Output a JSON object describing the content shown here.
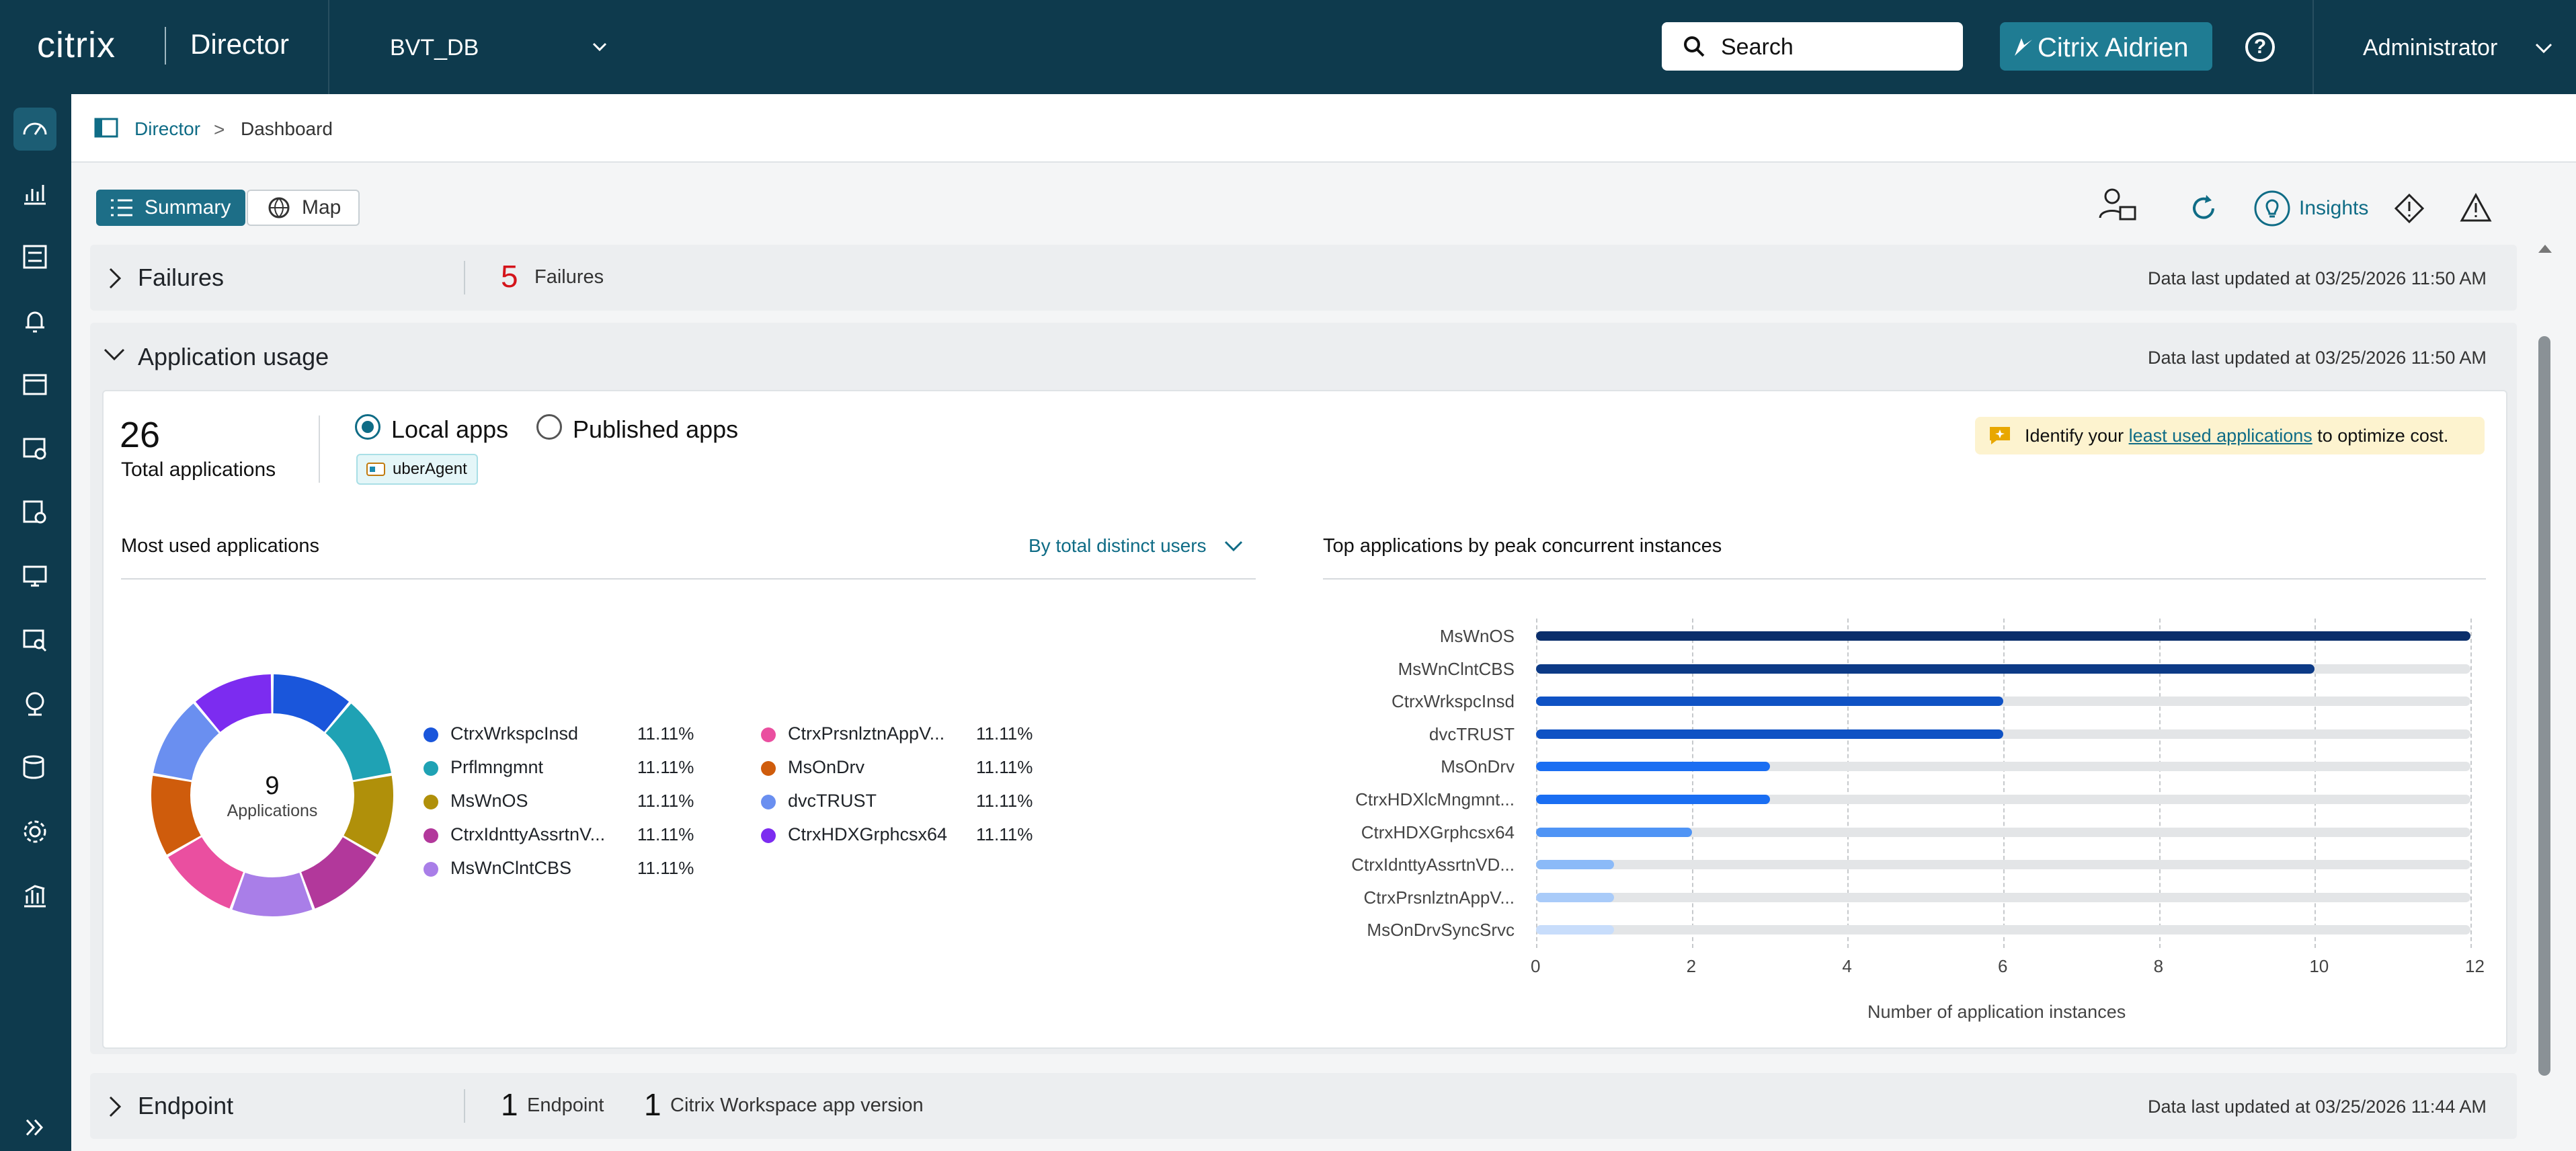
{
  "header": {
    "logo": "citrix",
    "app_name": "Director",
    "site": "BVT_DB",
    "search_label": "Search",
    "aidrien_label": "Citrix Aidrien",
    "help": "?",
    "user": "Administrator"
  },
  "breadcrumb": {
    "root": "Director",
    "separator": ">",
    "current": "Dashboard"
  },
  "view_toggle": {
    "summary": "Summary",
    "map": "Map"
  },
  "toolbar": {
    "insights": "Insights"
  },
  "failures": {
    "title": "Failures",
    "count": "5",
    "count_label": "Failures",
    "updated": "Data last updated at 03/25/2026 11:50 AM"
  },
  "app_usage": {
    "title": "Application usage",
    "updated": "Data last updated at 03/25/2026 11:50 AM",
    "total_count": "26",
    "total_label": "Total applications",
    "radio_local": "Local apps",
    "radio_published": "Published apps",
    "selected_radio": "Local apps",
    "tag": "uberAgent",
    "tip_prefix": "Identify your ",
    "tip_link": "least used applications",
    "tip_suffix": " to optimize cost.",
    "most_used_title": "Most used applications",
    "sort_label": "By total distinct users",
    "donut_center_value": "9",
    "donut_center_label": "Applications",
    "top_title": "Top applications by peak concurrent instances",
    "x_axis_label": "Number of application instances"
  },
  "endpoint": {
    "title": "Endpoint",
    "count1": "1",
    "label1": "Endpoint",
    "count2": "1",
    "label2": "Citrix Workspace app version",
    "updated": "Data last updated at 03/25/2026 11:44 AM"
  },
  "chart_data": [
    {
      "type": "pie",
      "title": "Most used applications",
      "labels": [
        "CtrxWrkspcInsd",
        "Prflmngmnt",
        "MsWnOS",
        "CtrxIdnttyAssrtnV...",
        "MsWnClntCBS",
        "CtrxPrsnlztnAppV...",
        "MsOnDrv",
        "dvcTRUST",
        "CtrxHDXGrphcsx64"
      ],
      "values": [
        11.11,
        11.11,
        11.11,
        11.11,
        11.11,
        11.11,
        11.11,
        11.11,
        11.11
      ],
      "value_labels": [
        "11.11%",
        "11.11%",
        "11.11%",
        "11.11%",
        "11.11%",
        "11.11%",
        "11.11%",
        "11.11%",
        "11.11%"
      ],
      "colors": [
        "#1a56db",
        "#1fa2b4",
        "#b0900a",
        "#b2389b",
        "#a97ee8",
        "#ea4fa0",
        "#cf5c0c",
        "#6a8ff0",
        "#7c2cf0"
      ]
    },
    {
      "type": "bar",
      "orientation": "horizontal",
      "title": "Top applications by peak concurrent instances",
      "categories": [
        "MsWnOS",
        "MsWnClntCBS",
        "CtrxWrkspcInsd",
        "dvcTRUST",
        "MsOnDrv",
        "CtrxHDXlcMngmnt...",
        "CtrxHDXGrphcsx64",
        "CtrxIdnttyAssrtnVD...",
        "CtrxPrsnlztnAppV...",
        "MsOnDrvSyncSrvc"
      ],
      "values": [
        12,
        10,
        6,
        6,
        3,
        3,
        2,
        1,
        1,
        1
      ],
      "xlabel": "Number of application instances",
      "xlim": [
        0,
        12
      ],
      "xticks": [
        "0",
        "2",
        "4",
        "6",
        "8",
        "10",
        "12"
      ],
      "bar_colors": [
        "#0a2e6b",
        "#0c3a86",
        "#0f52c4",
        "#0f52c4",
        "#1a6ef2",
        "#1a6ef2",
        "#4f94f5",
        "#8bbaf8",
        "#a9cbf9",
        "#c8ddfb"
      ]
    }
  ]
}
